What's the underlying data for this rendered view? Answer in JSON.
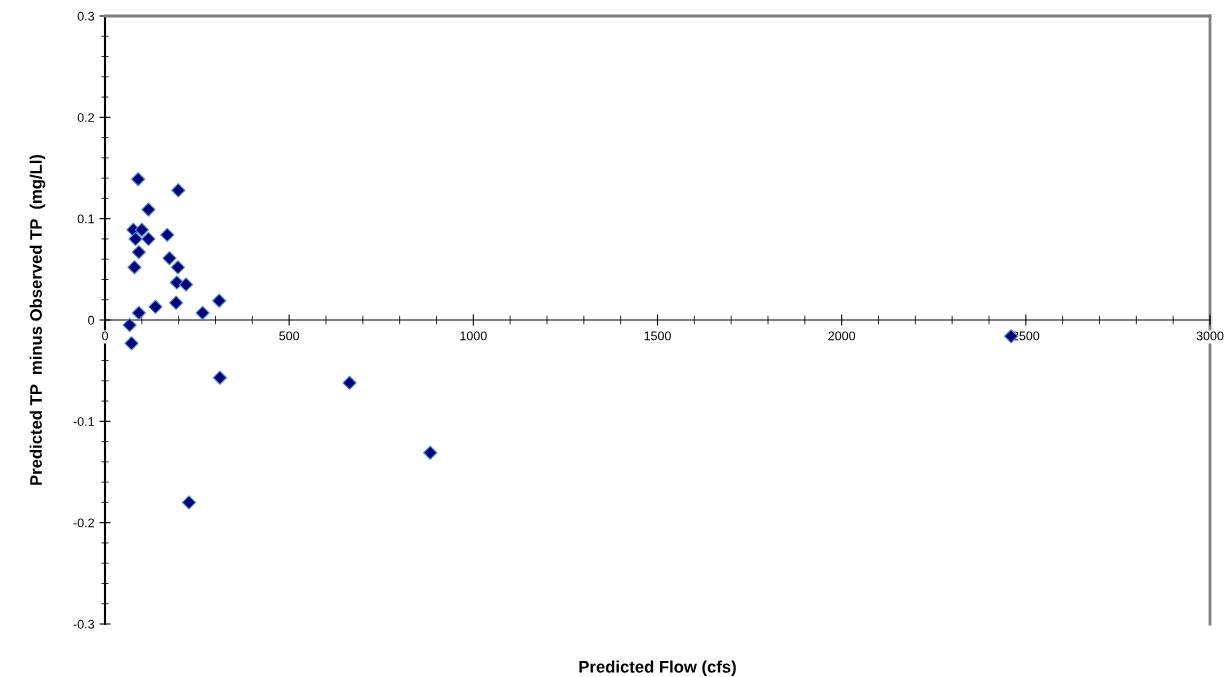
{
  "chart_data": {
    "type": "scatter",
    "xlabel": "Predicted Flow (cfs)",
    "ylabel": "Predicted TP  minus Observed TP  (mg/Ll)",
    "x": [
      90,
      199,
      118,
      77,
      100,
      83,
      118,
      169,
      92,
      175,
      80,
      198,
      195,
      220,
      193,
      137,
      92,
      265,
      310,
      67,
      72,
      312,
      664,
      883,
      228,
      2460
    ],
    "values": [
      0.139,
      0.128,
      0.109,
      0.089,
      0.089,
      0.08,
      0.08,
      0.084,
      0.067,
      0.061,
      0.052,
      0.052,
      0.037,
      0.035,
      0.017,
      0.013,
      0.007,
      0.007,
      0.019,
      -0.005,
      -0.023,
      -0.057,
      -0.062,
      -0.131,
      -0.18,
      -0.016
    ],
    "color": "#000080",
    "marker": "diamond",
    "xlim": [
      0,
      3000
    ],
    "xticks": [
      0,
      500,
      1000,
      1500,
      2000,
      2500,
      3000
    ],
    "ylim": [
      -0.3,
      0.3
    ],
    "yticks": [
      -0.3,
      -0.2,
      -0.1,
      0,
      0.1,
      0.2,
      0.3
    ],
    "grid": false,
    "legend": false
  }
}
